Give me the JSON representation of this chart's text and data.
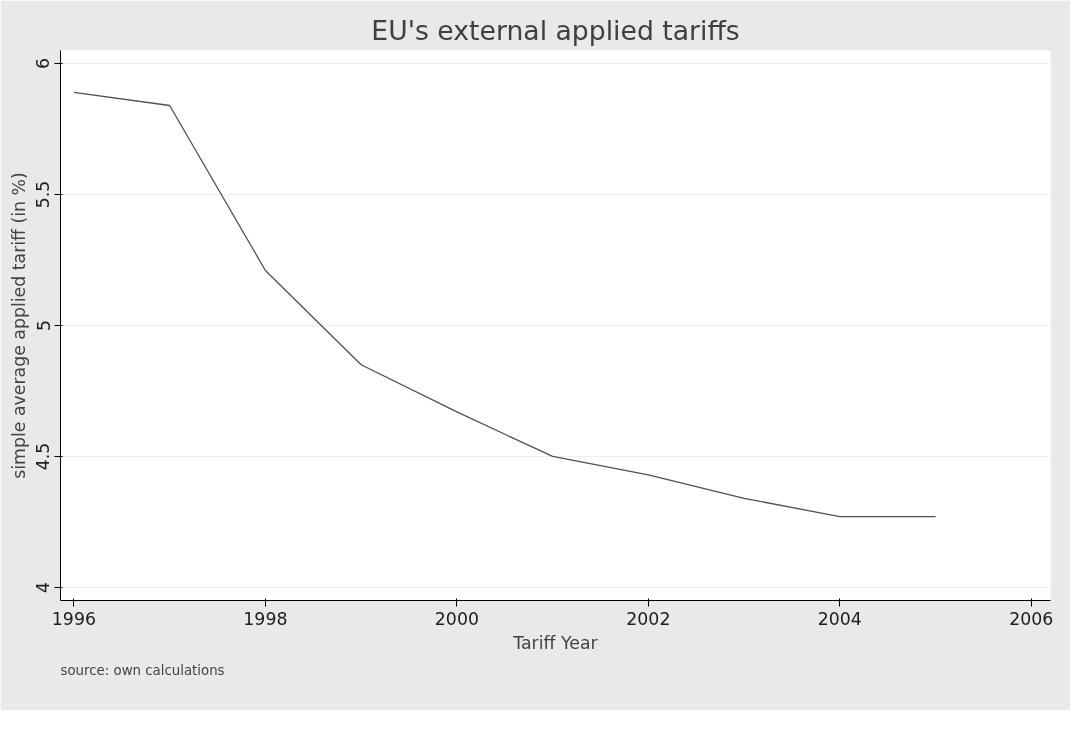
{
  "chart_data": {
    "type": "line",
    "title": "EU's external applied tariffs",
    "xlabel": "Tariff Year",
    "ylabel": "simple average applied tariff (in %)",
    "annotations": [
      "source: own calculations"
    ],
    "x": [
      1996,
      1997,
      1998,
      1999,
      2000,
      2001,
      2002,
      2003,
      2004,
      2005
    ],
    "series": [
      {
        "color": "#505050",
        "values": [
          5.89,
          5.84,
          5.21,
          4.85,
          4.67,
          4.5,
          4.43,
          4.34,
          4.27,
          4.27
        ]
      }
    ],
    "xlim": [
      1995.86,
      2006.2
    ],
    "xticks": [
      1996,
      1998,
      2000,
      2002,
      2004,
      2006
    ],
    "ylim": [
      3.95,
      6.05
    ],
    "yticks": [
      4,
      {
        "value": 4.5,
        "label": "4.5"
      },
      5,
      {
        "value": 5.5,
        "label": "5.5"
      },
      6
    ],
    "grid": "y",
    "marker": "none",
    "line_style": "solid"
  }
}
